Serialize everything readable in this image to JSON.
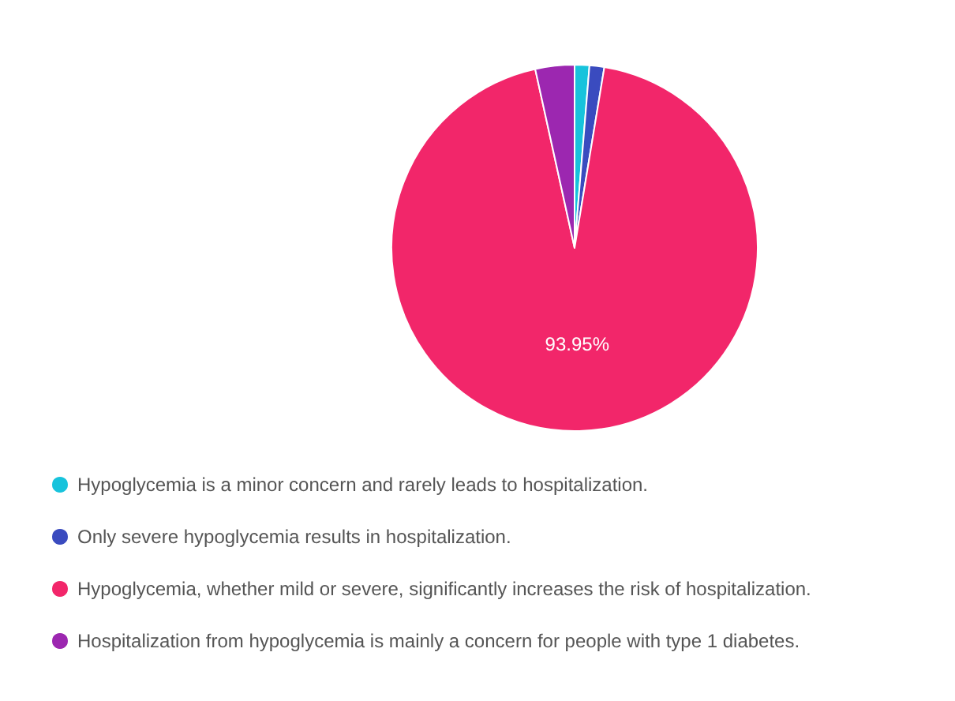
{
  "chart_data": {
    "type": "pie",
    "categories": [
      "Hypoglycemia is a minor concern and rarely leads to hospitalization.",
      "Only severe hypoglycemia results in hospitalization.",
      "Hypoglycemia, whether mild or severe, significantly increases the risk of hospitalization.",
      "Hospitalization from hypoglycemia is mainly a concern for people with type 1 diabetes."
    ],
    "values": [
      1.3,
      1.3,
      93.95,
      3.45
    ],
    "value_labels": [
      null,
      null,
      "93.95%",
      null
    ],
    "colors": [
      "#17c3dc",
      "#3a4bbf",
      "#f2266a",
      "#9c27b0"
    ],
    "legend": "bottom left"
  }
}
